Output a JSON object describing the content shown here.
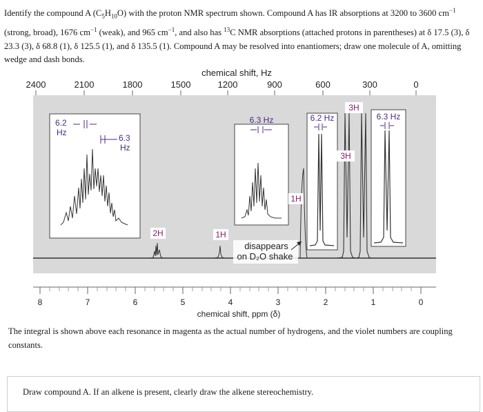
{
  "question": {
    "p1": "Identify the compound A (C",
    "c_sub": "5",
    "p2": "H",
    "h_sub": "10",
    "p3": "O) with the proton NMR spectrum shown. Compound A has IR absorptions at 3200 to 3600 cm",
    "exp1": "−1",
    "p4": " (strong, broad), 1676 cm",
    "exp2": "−1",
    "p5": " (weak), and 965 cm",
    "exp3": "−1",
    "p6": ", and also has ",
    "c13_sup": "13",
    "p7": "C NMR absorptions (attached protons in parentheses) at δ 17.5 (3), δ 23.3 (3), δ 68.8 (1), δ 125.5 (1), and δ 135.5 (1). Compound A may be resolved into enantiomers; draw one molecule of A, omitting wedge and dash bonds."
  },
  "spectrum": {
    "top_axis_title": "chemical shift, Hz",
    "top_ticks": [
      "2400",
      "2100",
      "1800",
      "1500",
      "1200",
      "900",
      "600",
      "300",
      "0"
    ],
    "bottom_axis_title": "chemical shift, ppm (δ)",
    "bottom_ticks": [
      "8",
      "7",
      "6",
      "5",
      "4",
      "3",
      "2",
      "1",
      "0"
    ],
    "integrals": [
      "2H",
      "1H",
      "1H",
      "3H",
      "3H"
    ],
    "couplings": [
      "6.2",
      "Hz",
      "6.3",
      "Hz",
      "6.3 Hz",
      "6.2 Hz",
      "6.3 Hz"
    ],
    "note_line1": "disappears",
    "note_line2": "on D₂O shake",
    "colors": {
      "integral": "#8a1a6a",
      "coupling": "#4b2a86",
      "spectrum": "#333333",
      "panel_bg": "#d9d9d9"
    }
  },
  "caption": "The integral is shown above each resonance in magenta as the actual number of hydrogens, and the violet numbers are coupling constants.",
  "answer_prompt": "Draw compound A. If an alkene is present, clearly draw the alkene stereochemistry."
}
